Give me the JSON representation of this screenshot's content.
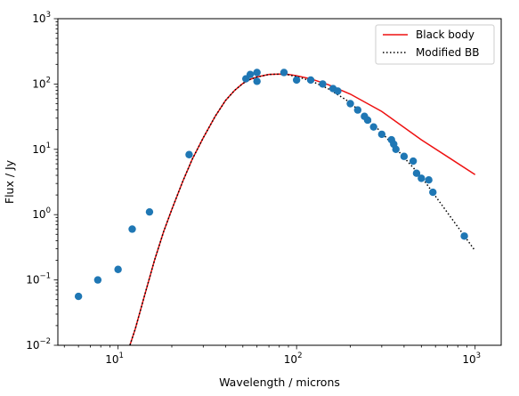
{
  "chart_data": {
    "type": "scatter",
    "xlabel": "Wavelength / microns",
    "ylabel": "Flux / Jy",
    "xscale": "log",
    "yscale": "log",
    "xlim": [
      4.6,
      1400
    ],
    "ylim": [
      0.01,
      1000
    ],
    "grid": false,
    "legend_position": "top-right",
    "x_ticks": [
      {
        "value": 10,
        "base": "10",
        "exp": "1"
      },
      {
        "value": 100,
        "base": "10",
        "exp": "2"
      },
      {
        "value": 1000,
        "base": "10",
        "exp": "3"
      }
    ],
    "y_ticks": [
      {
        "value": 0.01,
        "base": "10",
        "exp": "−2"
      },
      {
        "value": 0.1,
        "base": "10",
        "exp": "−1"
      },
      {
        "value": 1,
        "base": "10",
        "exp": "0"
      },
      {
        "value": 10,
        "base": "10",
        "exp": "1"
      },
      {
        "value": 100,
        "base": "10",
        "exp": "2"
      },
      {
        "value": 1000,
        "base": "10",
        "exp": "3"
      }
    ],
    "series": [
      {
        "name": "Black body",
        "kind": "line",
        "color": "#ee1111",
        "dash": "solid",
        "x": [
          11.5,
          12.5,
          14,
          16,
          18,
          20,
          23,
          26,
          30,
          35,
          40,
          45,
          50,
          55,
          60,
          70,
          80,
          90,
          100,
          120,
          150,
          200,
          300,
          500,
          1000
        ],
        "y": [
          0.009,
          0.018,
          0.055,
          0.2,
          0.55,
          1.2,
          3.2,
          7,
          15,
          32,
          56,
          80,
          102,
          118,
          128,
          140,
          142,
          140,
          134,
          120,
          98,
          70,
          38,
          14,
          4.1
        ]
      },
      {
        "name": "Modified BB",
        "kind": "line",
        "color": "#000000",
        "dash": "dotted",
        "x": [
          11.5,
          12.5,
          14,
          16,
          18,
          20,
          23,
          26,
          30,
          35,
          40,
          45,
          50,
          55,
          60,
          70,
          80,
          90,
          100,
          120,
          150,
          200,
          300,
          500,
          1000
        ],
        "y": [
          0.009,
          0.018,
          0.055,
          0.2,
          0.55,
          1.2,
          3.2,
          7,
          15,
          32,
          56,
          80,
          102,
          118,
          128,
          140,
          142,
          138,
          130,
          112,
          85,
          52,
          18,
          3.8,
          0.28
        ]
      },
      {
        "name": "",
        "kind": "scatter",
        "color": "#1f77b4",
        "x": [
          6,
          7.7,
          10,
          12,
          15,
          25,
          52,
          55,
          60,
          60,
          85,
          100,
          120,
          140,
          160,
          170,
          200,
          220,
          240,
          250,
          270,
          300,
          340,
          350,
          360,
          400,
          450,
          470,
          500,
          550,
          580,
          870
        ],
        "y": [
          0.056,
          0.1,
          0.145,
          0.6,
          1.1,
          8.3,
          120,
          140,
          150,
          110,
          150,
          115,
          115,
          100,
          85,
          78,
          50,
          40,
          32,
          28,
          22,
          17,
          14,
          12,
          10,
          7.8,
          6.6,
          4.3,
          3.6,
          3.4,
          2.2,
          0.47
        ]
      }
    ]
  }
}
